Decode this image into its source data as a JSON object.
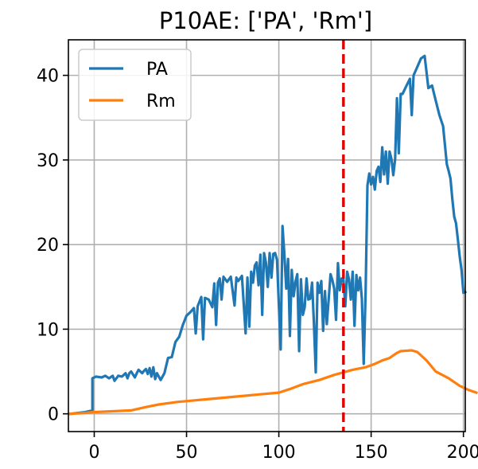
{
  "chart_data": {
    "type": "line",
    "title": "P10AE: ['PA', 'Rm']",
    "xlabel": "",
    "ylabel": "",
    "xlim": [
      -14,
      201
    ],
    "ylim": [
      -2.1,
      44.2
    ],
    "xticks": [
      0,
      50,
      100,
      150,
      200
    ],
    "yticks": [
      0,
      10,
      20,
      30,
      40
    ],
    "x_tick_labels": [
      "0",
      "50",
      "100",
      "150",
      "200"
    ],
    "y_tick_labels": [
      "0",
      "10",
      "20",
      "30",
      "40"
    ],
    "grid": true,
    "legend_position": "upper-left",
    "vline": {
      "x": 135,
      "color": "#e00000",
      "style": "dashed"
    },
    "series": [
      {
        "name": "PA",
        "color": "#1f77b4",
        "points": [
          [
            -13,
            0.0
          ],
          [
            -5,
            0.2
          ],
          [
            -1,
            0.4
          ],
          [
            -1,
            4.2
          ],
          [
            1,
            4.4
          ],
          [
            4,
            4.3
          ],
          [
            6,
            4.5
          ],
          [
            8,
            4.2
          ],
          [
            10,
            4.5
          ],
          [
            11,
            3.9
          ],
          [
            13,
            4.5
          ],
          [
            15,
            4.4
          ],
          [
            17,
            4.8
          ],
          [
            18,
            4.2
          ],
          [
            19,
            4.8
          ],
          [
            20,
            5.0
          ],
          [
            22,
            4.3
          ],
          [
            23,
            4.8
          ],
          [
            24,
            5.2
          ],
          [
            26,
            4.8
          ],
          [
            27,
            5.1
          ],
          [
            28,
            5.3
          ],
          [
            29,
            4.7
          ],
          [
            30,
            5.4
          ],
          [
            31,
            4.4
          ],
          [
            32,
            5.5
          ],
          [
            33,
            4.1
          ],
          [
            34,
            4.8
          ],
          [
            36,
            4.0
          ],
          [
            38,
            4.8
          ],
          [
            40,
            6.6
          ],
          [
            42,
            6.7
          ],
          [
            44,
            8.5
          ],
          [
            46,
            9.1
          ],
          [
            48,
            10.5
          ],
          [
            50,
            11.6
          ],
          [
            52,
            12.0
          ],
          [
            54,
            12.5
          ],
          [
            55,
            9.5
          ],
          [
            56,
            12.7
          ],
          [
            58,
            13.8
          ],
          [
            59,
            8.8
          ],
          [
            60,
            13.7
          ],
          [
            62,
            13.5
          ],
          [
            64,
            12.6
          ],
          [
            65,
            15.4
          ],
          [
            66,
            10.5
          ],
          [
            67,
            15.5
          ],
          [
            68,
            16.0
          ],
          [
            69,
            13.5
          ],
          [
            70,
            16.2
          ],
          [
            72,
            15.6
          ],
          [
            74,
            16.2
          ],
          [
            76,
            12.8
          ],
          [
            77,
            16.1
          ],
          [
            78,
            15.7
          ],
          [
            80,
            16.3
          ],
          [
            82,
            9.5
          ],
          [
            83,
            16.1
          ],
          [
            84,
            10.3
          ],
          [
            85,
            16.8
          ],
          [
            86,
            15.5
          ],
          [
            87,
            17.5
          ],
          [
            88,
            17.9
          ],
          [
            89,
            15.2
          ],
          [
            90,
            18.8
          ],
          [
            91,
            11.7
          ],
          [
            92,
            19.0
          ],
          [
            93,
            17.9
          ],
          [
            94,
            15.0
          ],
          [
            95,
            19.0
          ],
          [
            96,
            16.1
          ],
          [
            97,
            18.9
          ],
          [
            98,
            19.0
          ],
          [
            99,
            18.2
          ],
          [
            101,
            7.6
          ],
          [
            102,
            22.2
          ],
          [
            103,
            18.9
          ],
          [
            104,
            14.8
          ],
          [
            105,
            18.3
          ],
          [
            106,
            9.2
          ],
          [
            107,
            17.0
          ],
          [
            108,
            13.9
          ],
          [
            109,
            15.6
          ],
          [
            110,
            16.5
          ],
          [
            111,
            7.4
          ],
          [
            112,
            15.9
          ],
          [
            113,
            11.7
          ],
          [
            114,
            12.6
          ],
          [
            115,
            16.0
          ],
          [
            116,
            13.5
          ],
          [
            117,
            13.6
          ],
          [
            118,
            15.5
          ],
          [
            119,
            10.7
          ],
          [
            120,
            4.9
          ],
          [
            121,
            15.5
          ],
          [
            122,
            14.3
          ],
          [
            123,
            15.7
          ],
          [
            124,
            9.8
          ],
          [
            125,
            14.5
          ],
          [
            126,
            10.6
          ],
          [
            127,
            13.6
          ],
          [
            128,
            16.5
          ],
          [
            129,
            15.8
          ],
          [
            130,
            14.8
          ],
          [
            131,
            11.1
          ],
          [
            132,
            17.8
          ],
          [
            133,
            14.6
          ],
          [
            134,
            16.0
          ],
          [
            135,
            15.9
          ],
          [
            136,
            12.7
          ],
          [
            137,
            16.8
          ],
          [
            138,
            15.9
          ],
          [
            139,
            13.5
          ],
          [
            140,
            16.8
          ],
          [
            141,
            10.4
          ],
          [
            142,
            16.4
          ],
          [
            143,
            14.6
          ],
          [
            144,
            16.1
          ],
          [
            145,
            13.6
          ],
          [
            146,
            5.9
          ],
          [
            147,
            14.4
          ],
          [
            148,
            27.0
          ],
          [
            149,
            28.4
          ],
          [
            150,
            27.1
          ],
          [
            151,
            28.0
          ],
          [
            152,
            26.5
          ],
          [
            153,
            28.7
          ],
          [
            154,
            29.2
          ],
          [
            155,
            27.4
          ],
          [
            156,
            31.5
          ],
          [
            157,
            28.3
          ],
          [
            158,
            31.0
          ],
          [
            159,
            27.2
          ],
          [
            160,
            31.0
          ],
          [
            161,
            30.1
          ],
          [
            162,
            28.2
          ],
          [
            163,
            30.1
          ],
          [
            164,
            37.3
          ],
          [
            165,
            30.8
          ],
          [
            166,
            37.8
          ],
          [
            167,
            37.8
          ],
          [
            169,
            38.7
          ],
          [
            171,
            39.6
          ],
          [
            172,
            35.3
          ],
          [
            173,
            40.0
          ],
          [
            175,
            41.0
          ],
          [
            177,
            42.0
          ],
          [
            179,
            42.3
          ],
          [
            181,
            38.5
          ],
          [
            183,
            38.8
          ],
          [
            185,
            37.0
          ],
          [
            187,
            35.3
          ],
          [
            189,
            34.0
          ],
          [
            190,
            31.7
          ],
          [
            191,
            29.5
          ],
          [
            192,
            28.7
          ],
          [
            193,
            27.8
          ],
          [
            194,
            25.3
          ],
          [
            195,
            23.3
          ],
          [
            196,
            22.5
          ],
          [
            197,
            20.6
          ],
          [
            198,
            18.6
          ],
          [
            199,
            16.9
          ],
          [
            200,
            14.3
          ],
          [
            201,
            14.4
          ]
        ]
      },
      {
        "name": "Rm",
        "color": "#ff7f0e",
        "points": [
          [
            -13,
            0.0
          ],
          [
            -5,
            0.1
          ],
          [
            -1,
            0.2
          ],
          [
            10,
            0.3
          ],
          [
            20,
            0.4
          ],
          [
            24,
            0.6
          ],
          [
            28,
            0.8
          ],
          [
            35,
            1.1
          ],
          [
            45,
            1.4
          ],
          [
            55,
            1.6
          ],
          [
            60,
            1.7
          ],
          [
            70,
            1.9
          ],
          [
            80,
            2.1
          ],
          [
            90,
            2.3
          ],
          [
            100,
            2.5
          ],
          [
            107,
            3.0
          ],
          [
            113,
            3.5
          ],
          [
            122,
            4.0
          ],
          [
            130,
            4.6
          ],
          [
            140,
            5.2
          ],
          [
            147,
            5.5
          ],
          [
            152,
            5.9
          ],
          [
            156,
            6.3
          ],
          [
            160,
            6.6
          ],
          [
            164,
            7.2
          ],
          [
            166,
            7.4
          ],
          [
            172,
            7.5
          ],
          [
            175,
            7.3
          ],
          [
            180,
            6.3
          ],
          [
            185,
            5.0
          ],
          [
            192,
            4.2
          ],
          [
            198,
            3.3
          ],
          [
            203,
            2.8
          ],
          [
            207,
            2.5
          ]
        ]
      }
    ]
  }
}
